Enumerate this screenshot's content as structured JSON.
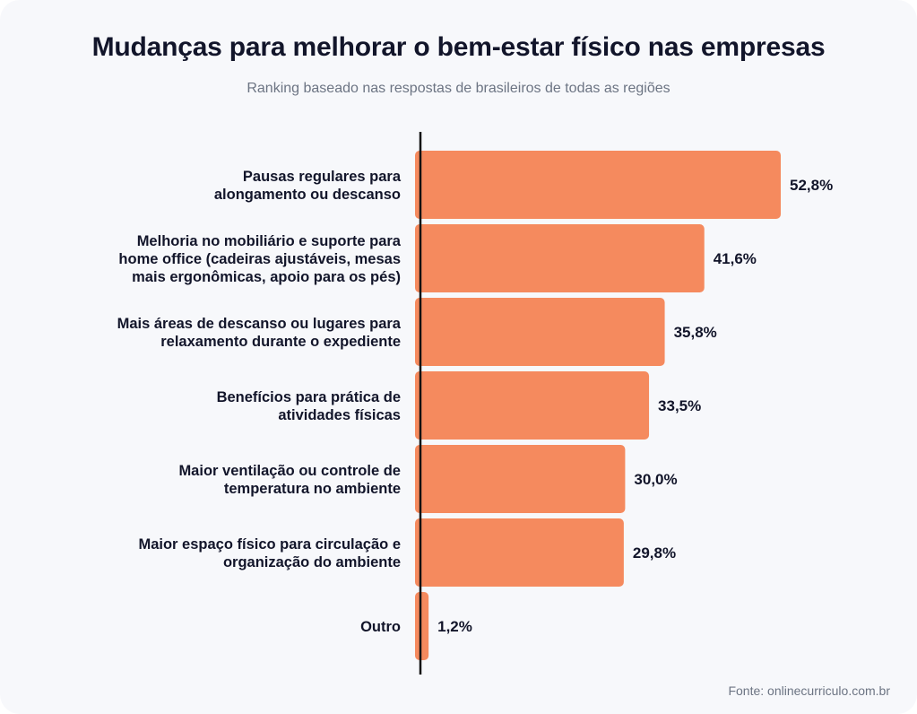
{
  "chart_data": {
    "type": "bar",
    "orientation": "horizontal",
    "title": "Mudanças para melhorar o bem-estar físico nas empresas",
    "subtitle": "Ranking baseado nas respostas de brasileiros de todas as regiões",
    "categories": [
      [
        "Pausas regulares para",
        "alongamento ou descanso"
      ],
      [
        "Melhoria no mobiliário e suporte para",
        "home office (cadeiras ajustáveis, mesas",
        "mais ergonômicas, apoio para os pés)"
      ],
      [
        "Mais áreas de descanso ou lugares para",
        "relaxamento durante o expediente"
      ],
      [
        "Benefícios para prática de",
        "atividades físicas"
      ],
      [
        "Maior ventilação ou controle de",
        "temperatura no ambiente"
      ],
      [
        "Maior espaço físico para circulação e",
        "organização do ambiente"
      ],
      [
        "Outro"
      ]
    ],
    "values": [
      52.8,
      41.6,
      35.8,
      33.5,
      30.0,
      29.8,
      1.2
    ],
    "value_labels": [
      "52,8%",
      "41,6%",
      "35,8%",
      "33,5%",
      "30,0%",
      "29,8%",
      "1,2%"
    ],
    "unit": "%",
    "xlim": [
      0,
      52.8
    ],
    "grid": false,
    "bar_color": "#f58a5e",
    "axis_color": "#111111"
  },
  "source": "Fonte: onlinecurriculo.com.br"
}
